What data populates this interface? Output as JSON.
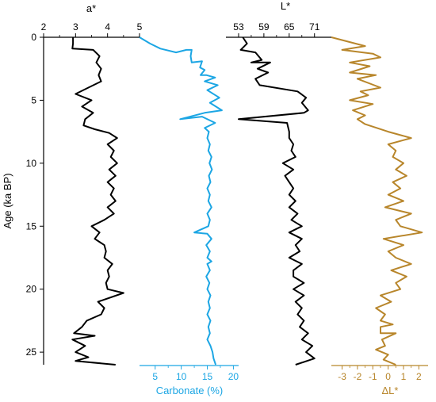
{
  "chart_data": {
    "type": "line",
    "orientation": "vertical-depth",
    "y_axis": {
      "label": "Age (ka BP)",
      "ylim": [
        0,
        26
      ],
      "ticks": [
        0,
        5,
        10,
        15,
        20,
        25
      ],
      "reversed": true
    },
    "series": [
      {
        "id": "a_star",
        "name": "a*",
        "axis_label": "a*",
        "axis_position": "top",
        "xlim": [
          2,
          5
        ],
        "ticks": [
          2,
          3,
          4,
          5
        ],
        "color": "#000000",
        "points": [
          [
            2.92,
            0.0
          ],
          [
            2.92,
            0.5
          ],
          [
            2.9,
            0.9
          ],
          [
            3.55,
            1.0
          ],
          [
            3.75,
            1.5
          ],
          [
            3.65,
            2.0
          ],
          [
            3.8,
            2.5
          ],
          [
            3.72,
            3.0
          ],
          [
            3.8,
            3.5
          ],
          [
            3.4,
            4.0
          ],
          [
            3.0,
            4.5
          ],
          [
            3.5,
            5.0
          ],
          [
            3.2,
            5.5
          ],
          [
            3.55,
            6.0
          ],
          [
            3.3,
            6.5
          ],
          [
            3.25,
            7.0
          ],
          [
            3.6,
            7.3
          ],
          [
            4.05,
            7.6
          ],
          [
            4.3,
            8.0
          ],
          [
            4.0,
            8.5
          ],
          [
            4.2,
            9.0
          ],
          [
            4.1,
            9.5
          ],
          [
            4.3,
            10.0
          ],
          [
            4.05,
            10.5
          ],
          [
            4.25,
            11.0
          ],
          [
            4.0,
            11.5
          ],
          [
            4.2,
            12.0
          ],
          [
            4.1,
            12.5
          ],
          [
            4.25,
            13.0
          ],
          [
            4.0,
            13.5
          ],
          [
            4.2,
            14.0
          ],
          [
            3.9,
            14.5
          ],
          [
            3.5,
            15.0
          ],
          [
            3.75,
            15.5
          ],
          [
            3.6,
            16.0
          ],
          [
            3.9,
            16.5
          ],
          [
            3.95,
            17.0
          ],
          [
            3.9,
            17.5
          ],
          [
            4.15,
            18.0
          ],
          [
            4.0,
            18.5
          ],
          [
            4.05,
            19.0
          ],
          [
            3.95,
            19.5
          ],
          [
            4.0,
            20.0
          ],
          [
            4.5,
            20.3
          ],
          [
            3.7,
            21.0
          ],
          [
            3.9,
            21.5
          ],
          [
            3.8,
            22.0
          ],
          [
            3.35,
            22.5
          ],
          [
            3.2,
            23.0
          ],
          [
            2.95,
            23.5
          ],
          [
            3.6,
            23.7
          ],
          [
            2.9,
            24.0
          ],
          [
            3.3,
            24.5
          ],
          [
            3.0,
            25.0
          ],
          [
            3.4,
            25.4
          ],
          [
            3.0,
            25.7
          ],
          [
            4.25,
            26.0
          ]
        ]
      },
      {
        "id": "carbonate",
        "name": "Carbonate (%)",
        "axis_label": "Carbonate (%)",
        "axis_position": "bottom",
        "xlim": [
          2,
          21
        ],
        "ticks": [
          5,
          10,
          15,
          20
        ],
        "color": "#1ca6e4",
        "points": [
          [
            2.0,
            0.0
          ],
          [
            4.0,
            0.5
          ],
          [
            6.0,
            0.9
          ],
          [
            9.0,
            1.2
          ],
          [
            11.0,
            1.0
          ],
          [
            12.0,
            1.0
          ],
          [
            11.8,
            1.5
          ],
          [
            12.0,
            2.0
          ],
          [
            14.0,
            1.9
          ],
          [
            13.6,
            2.4
          ],
          [
            14.5,
            2.6
          ],
          [
            13.7,
            3.0
          ],
          [
            14.8,
            3.0
          ],
          [
            16.5,
            3.2
          ],
          [
            14.5,
            3.5
          ],
          [
            17.0,
            3.8
          ],
          [
            15.0,
            4.2
          ],
          [
            17.3,
            4.8
          ],
          [
            15.5,
            5.2
          ],
          [
            17.8,
            5.8
          ],
          [
            14.5,
            6.0
          ],
          [
            9.8,
            6.5
          ],
          [
            14.0,
            6.3
          ],
          [
            16.5,
            6.8
          ],
          [
            14.5,
            7.2
          ],
          [
            15.3,
            7.5
          ],
          [
            15.0,
            8.0
          ],
          [
            15.5,
            8.5
          ],
          [
            15.2,
            9.0
          ],
          [
            15.8,
            9.5
          ],
          [
            15.4,
            10.0
          ],
          [
            15.9,
            10.5
          ],
          [
            15.3,
            11.0
          ],
          [
            15.6,
            11.5
          ],
          [
            15.0,
            12.0
          ],
          [
            15.5,
            12.5
          ],
          [
            15.2,
            13.0
          ],
          [
            15.8,
            13.5
          ],
          [
            15.0,
            14.0
          ],
          [
            15.5,
            14.5
          ],
          [
            15.2,
            15.0
          ],
          [
            12.5,
            15.5
          ],
          [
            15.0,
            15.6
          ],
          [
            15.8,
            16.0
          ],
          [
            14.8,
            16.5
          ],
          [
            15.5,
            17.0
          ],
          [
            15.0,
            17.5
          ],
          [
            15.8,
            17.8
          ],
          [
            15.0,
            18.0
          ],
          [
            15.5,
            18.5
          ],
          [
            14.8,
            19.0
          ],
          [
            15.4,
            19.5
          ],
          [
            15.0,
            20.0
          ],
          [
            15.6,
            20.5
          ],
          [
            15.2,
            21.0
          ],
          [
            15.5,
            21.5
          ],
          [
            15.0,
            22.0
          ],
          [
            15.6,
            22.5
          ],
          [
            15.2,
            23.0
          ],
          [
            15.5,
            23.5
          ],
          [
            15.0,
            24.0
          ],
          [
            15.6,
            24.5
          ],
          [
            16.0,
            25.0
          ],
          [
            16.2,
            25.5
          ],
          [
            16.6,
            26.0
          ]
        ]
      },
      {
        "id": "l_star",
        "name": "L*",
        "axis_label": "L*",
        "axis_position": "top",
        "xlim": [
          50,
          75
        ],
        "ticks": [
          53,
          59,
          65,
          71
        ],
        "color": "#000000",
        "points": [
          [
            54.0,
            0.0
          ],
          [
            55.0,
            0.5
          ],
          [
            53.5,
            1.0
          ],
          [
            57.0,
            1.2
          ],
          [
            58.5,
            1.8
          ],
          [
            56.0,
            2.0
          ],
          [
            60.5,
            2.0
          ],
          [
            57.5,
            2.5
          ],
          [
            60.0,
            2.8
          ],
          [
            57.0,
            3.3
          ],
          [
            58.0,
            3.8
          ],
          [
            67.0,
            4.3
          ],
          [
            69.0,
            4.8
          ],
          [
            68.0,
            5.2
          ],
          [
            69.5,
            5.8
          ],
          [
            68.5,
            6.0
          ],
          [
            53.0,
            6.5
          ],
          [
            64.5,
            6.8
          ],
          [
            65.0,
            7.5
          ],
          [
            65.0,
            8.0
          ],
          [
            66.0,
            8.5
          ],
          [
            65.5,
            9.0
          ],
          [
            66.5,
            9.5
          ],
          [
            63.5,
            10.0
          ],
          [
            66.0,
            10.5
          ],
          [
            64.0,
            11.0
          ],
          [
            65.0,
            11.5
          ],
          [
            66.0,
            12.0
          ],
          [
            65.0,
            12.5
          ],
          [
            66.5,
            13.0
          ],
          [
            65.0,
            13.5
          ],
          [
            67.0,
            14.0
          ],
          [
            65.5,
            14.5
          ],
          [
            68.0,
            15.0
          ],
          [
            65.0,
            15.5
          ],
          [
            68.0,
            16.0
          ],
          [
            66.5,
            16.5
          ],
          [
            67.5,
            17.0
          ],
          [
            65.0,
            17.5
          ],
          [
            68.0,
            18.0
          ],
          [
            66.0,
            18.5
          ],
          [
            66.0,
            19.0
          ],
          [
            68.5,
            19.5
          ],
          [
            66.0,
            20.0
          ],
          [
            68.5,
            20.5
          ],
          [
            66.5,
            21.0
          ],
          [
            68.0,
            21.5
          ],
          [
            67.0,
            22.0
          ],
          [
            68.5,
            22.5
          ],
          [
            67.5,
            23.0
          ],
          [
            69.5,
            23.5
          ],
          [
            68.0,
            24.0
          ],
          [
            70.5,
            24.5
          ],
          [
            69.0,
            25.0
          ],
          [
            71.0,
            25.5
          ],
          [
            66.5,
            26.0
          ]
        ]
      },
      {
        "id": "delta_l",
        "name": "ΔL*",
        "axis_label": "ΔL*",
        "axis_position": "bottom",
        "xlim": [
          -3.7,
          2.6
        ],
        "ticks": [
          -3,
          -2,
          -1,
          0,
          1,
          2
        ],
        "ticklabels": [
          "-3",
          "-2",
          "-1",
          "0",
          "1",
          "2"
        ],
        "color": "#b8862b",
        "points": [
          [
            -3.7,
            0.0
          ],
          [
            -1.5,
            0.7
          ],
          [
            -3.0,
            1.0
          ],
          [
            -1.0,
            1.3
          ],
          [
            -0.5,
            1.6
          ],
          [
            -2.5,
            2.0
          ],
          [
            -1.2,
            2.3
          ],
          [
            -2.5,
            2.8
          ],
          [
            -0.8,
            3.0
          ],
          [
            -2.0,
            3.3
          ],
          [
            -0.5,
            4.0
          ],
          [
            -1.8,
            4.3
          ],
          [
            -1.3,
            4.6
          ],
          [
            -2.5,
            5.0
          ],
          [
            -1.0,
            5.3
          ],
          [
            -2.3,
            5.8
          ],
          [
            -1.5,
            6.2
          ],
          [
            -2.0,
            6.5
          ],
          [
            -1.5,
            6.9
          ],
          [
            0.0,
            7.5
          ],
          [
            1.5,
            8.0
          ],
          [
            0.0,
            8.5
          ],
          [
            0.5,
            9.0
          ],
          [
            0.3,
            9.5
          ],
          [
            1.0,
            10.0
          ],
          [
            0.5,
            10.5
          ],
          [
            1.2,
            11.0
          ],
          [
            0.3,
            11.5
          ],
          [
            0.8,
            12.0
          ],
          [
            0.0,
            12.5
          ],
          [
            1.0,
            13.0
          ],
          [
            -0.2,
            13.5
          ],
          [
            1.5,
            14.0
          ],
          [
            0.5,
            14.5
          ],
          [
            0.8,
            15.0
          ],
          [
            2.2,
            15.5
          ],
          [
            -0.3,
            16.0
          ],
          [
            1.0,
            16.5
          ],
          [
            0.0,
            17.0
          ],
          [
            0.5,
            17.5
          ],
          [
            1.5,
            18.0
          ],
          [
            0.2,
            18.5
          ],
          [
            1.2,
            19.0
          ],
          [
            0.5,
            19.5
          ],
          [
            0.8,
            20.0
          ],
          [
            -0.5,
            20.5
          ],
          [
            0.2,
            21.0
          ],
          [
            -0.8,
            21.5
          ],
          [
            -0.2,
            22.0
          ],
          [
            -0.5,
            22.5
          ],
          [
            0.3,
            22.8
          ],
          [
            -0.5,
            23.0
          ],
          [
            -0.5,
            23.5
          ],
          [
            0.5,
            23.5
          ],
          [
            -0.4,
            24.0
          ],
          [
            -0.2,
            24.5
          ],
          [
            -0.8,
            24.8
          ],
          [
            0.0,
            25.2
          ],
          [
            -0.3,
            25.6
          ],
          [
            0.5,
            26.0
          ]
        ]
      }
    ]
  }
}
